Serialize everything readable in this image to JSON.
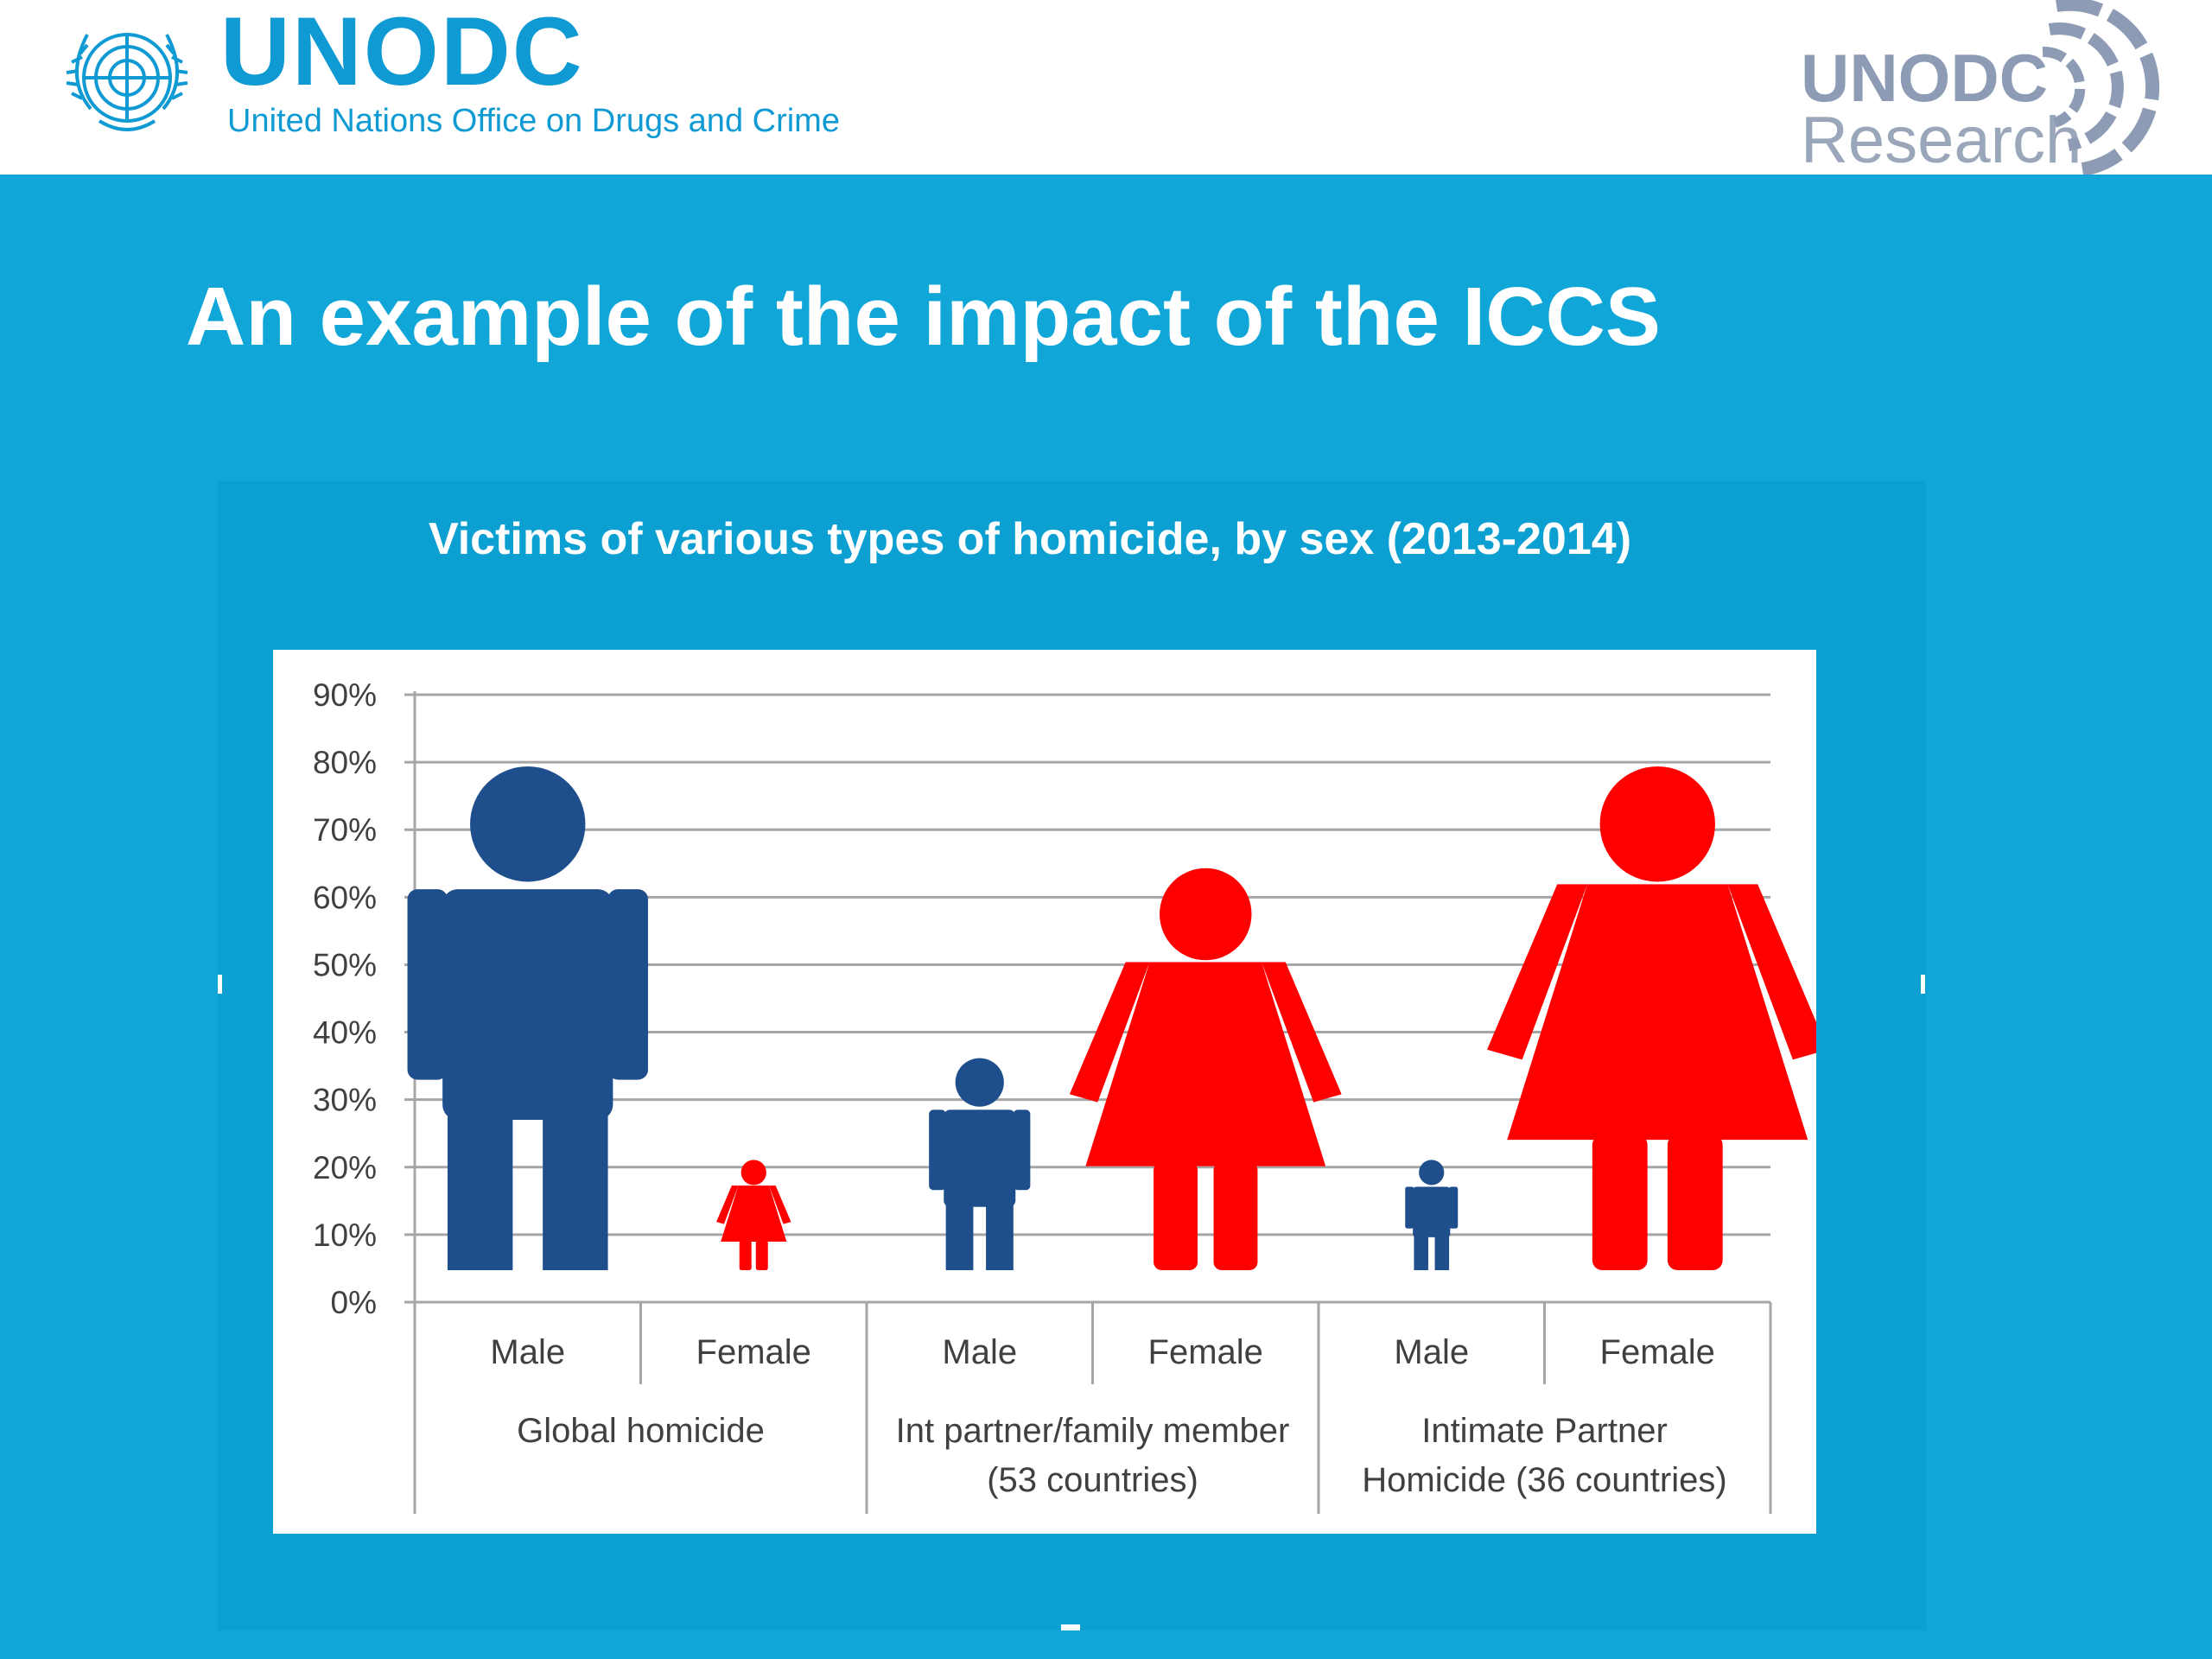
{
  "header": {
    "wordmark": "UNODC",
    "fullname": "United Nations Office on Drugs and Crime",
    "research_logo_top": "UNODC",
    "research_logo_bottom": "Research"
  },
  "slide": {
    "title": "An example of the impact of the ICCS"
  },
  "colors": {
    "brand_blue": "#0f9ad3",
    "slide_background": "#11a6d8",
    "male": "#1f4e8c",
    "female": "#ff0000"
  },
  "icons": {
    "left_logo": "un-emblem-icon",
    "right_logo": "research-arcs-icon",
    "male_marker": "male-figure-icon",
    "female_marker": "female-figure-icon"
  },
  "chart_data": {
    "type": "bar",
    "title": "Victims of various types of homicide, by sex (2013-2014)",
    "xlabel": "",
    "ylabel": "",
    "ylim": [
      0,
      90
    ],
    "yticks": [
      "0%",
      "10%",
      "20%",
      "30%",
      "40%",
      "50%",
      "60%",
      "70%",
      "80%",
      "90%"
    ],
    "grid": true,
    "legend": "none",
    "groups": [
      {
        "label_lines": [
          "Global homicide"
        ]
      },
      {
        "label_lines": [
          "Int partner/family member",
          "(53 countries)"
        ]
      },
      {
        "label_lines": [
          "Intimate Partner",
          "Homicide (36 countries)"
        ]
      }
    ],
    "bars": [
      {
        "group": 0,
        "category": "Male",
        "sex": "male",
        "value": 79
      },
      {
        "group": 0,
        "category": "Female",
        "sex": "female",
        "value": 21
      },
      {
        "group": 1,
        "category": "Male",
        "sex": "male",
        "value": 36
      },
      {
        "group": 1,
        "category": "Female",
        "sex": "female",
        "value": 64
      },
      {
        "group": 2,
        "category": "Male",
        "sex": "male",
        "value": 21
      },
      {
        "group": 2,
        "category": "Female",
        "sex": "female",
        "value": 79
      }
    ]
  }
}
